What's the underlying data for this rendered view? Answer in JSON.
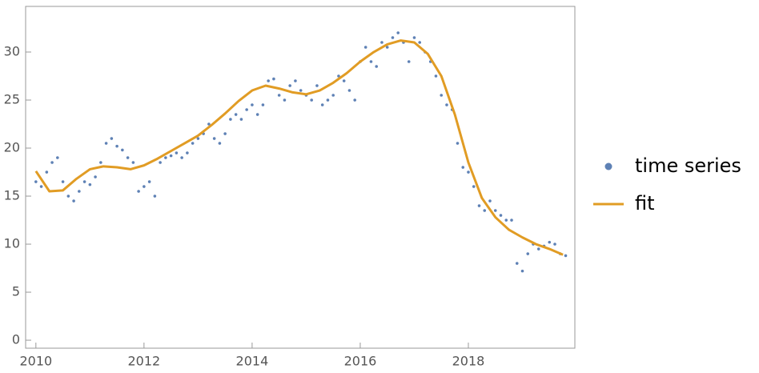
{
  "chart_data": {
    "type": "scatter",
    "xlim": [
      2009.81,
      2019.97
    ],
    "ylim": [
      -0.83,
      34.75
    ],
    "xticks": [
      2010,
      2012,
      2014,
      2016,
      2018
    ],
    "yticks": [
      0,
      5,
      10,
      15,
      20,
      25,
      30
    ],
    "legend": "right",
    "series": [
      {
        "name": "time series",
        "type": "scatter",
        "color": "#5e81b5",
        "x": [
          2010.0,
          2010.1,
          2010.2,
          2010.3,
          2010.4,
          2010.5,
          2010.6,
          2010.7,
          2010.8,
          2010.9,
          2011.0,
          2011.1,
          2011.2,
          2011.3,
          2011.4,
          2011.5,
          2011.6,
          2011.7,
          2011.8,
          2011.9,
          2012.0,
          2012.1,
          2012.2,
          2012.3,
          2012.4,
          2012.5,
          2012.6,
          2012.7,
          2012.8,
          2012.9,
          2013.0,
          2013.1,
          2013.2,
          2013.3,
          2013.4,
          2013.5,
          2013.6,
          2013.7,
          2013.8,
          2013.9,
          2014.0,
          2014.1,
          2014.2,
          2014.3,
          2014.4,
          2014.5,
          2014.6,
          2014.7,
          2014.8,
          2014.9,
          2015.0,
          2015.1,
          2015.2,
          2015.3,
          2015.4,
          2015.5,
          2015.6,
          2015.7,
          2015.8,
          2015.9,
          2016.0,
          2016.1,
          2016.2,
          2016.3,
          2016.4,
          2016.5,
          2016.6,
          2016.7,
          2016.8,
          2016.9,
          2017.0,
          2017.1,
          2017.2,
          2017.3,
          2017.4,
          2017.5,
          2017.6,
          2017.7,
          2017.8,
          2017.9,
          2018.0,
          2018.1,
          2018.2,
          2018.3,
          2018.4,
          2018.5,
          2018.6,
          2018.7,
          2018.8,
          2018.9,
          2019.0,
          2019.1,
          2019.2,
          2019.3,
          2019.4,
          2019.5,
          2019.6,
          2019.7,
          2019.8
        ],
        "values": [
          16.5,
          16.0,
          17.5,
          18.5,
          19.0,
          16.5,
          15.0,
          14.5,
          15.5,
          16.5,
          16.2,
          17.0,
          18.5,
          20.5,
          21.0,
          20.2,
          19.8,
          19.0,
          18.5,
          15.5,
          16.0,
          16.5,
          15.0,
          18.5,
          19.0,
          19.2,
          19.5,
          19.0,
          19.5,
          20.5,
          21.0,
          21.5,
          22.5,
          21.0,
          20.5,
          21.5,
          23.0,
          23.5,
          23.0,
          24.0,
          24.5,
          23.5,
          24.5,
          27.0,
          27.2,
          25.5,
          25.0,
          26.5,
          27.0,
          26.0,
          25.5,
          25.0,
          26.5,
          24.5,
          25.0,
          25.5,
          27.5,
          27.0,
          26.0,
          25.0,
          29.0,
          30.5,
          29.0,
          28.5,
          31.0,
          30.5,
          31.5,
          32.0,
          31.0,
          29.0,
          31.5,
          31.0,
          30.0,
          29.0,
          27.5,
          25.5,
          24.5,
          24.0,
          20.5,
          18.0,
          17.5,
          16.0,
          14.0,
          13.5,
          14.5,
          13.5,
          13.0,
          12.5,
          12.5,
          8.0,
          7.2,
          9.0,
          10.0,
          9.5,
          9.8,
          10.2,
          10.0,
          9.0,
          8.8
        ]
      },
      {
        "name": "fit",
        "type": "line",
        "color": "#e19c24",
        "x": [
          2010.0,
          2010.25,
          2010.5,
          2010.75,
          2011.0,
          2011.25,
          2011.5,
          2011.75,
          2012.0,
          2012.25,
          2012.5,
          2012.75,
          2013.0,
          2013.25,
          2013.5,
          2013.75,
          2014.0,
          2014.25,
          2014.5,
          2014.75,
          2015.0,
          2015.25,
          2015.5,
          2015.75,
          2016.0,
          2016.25,
          2016.5,
          2016.75,
          2017.0,
          2017.25,
          2017.5,
          2017.75,
          2018.0,
          2018.25,
          2018.5,
          2018.75,
          2019.0,
          2019.25,
          2019.5,
          2019.75
        ],
        "values": [
          17.6,
          15.5,
          15.6,
          16.8,
          17.8,
          18.1,
          18.0,
          17.8,
          18.2,
          18.9,
          19.7,
          20.5,
          21.3,
          22.4,
          23.6,
          24.9,
          26.0,
          26.5,
          26.2,
          25.8,
          25.6,
          26.0,
          26.8,
          27.8,
          29.0,
          30.0,
          30.8,
          31.2,
          31.0,
          29.8,
          27.5,
          23.5,
          18.5,
          14.8,
          12.8,
          11.5,
          10.7,
          10.0,
          9.5,
          8.9
        ]
      }
    ]
  }
}
